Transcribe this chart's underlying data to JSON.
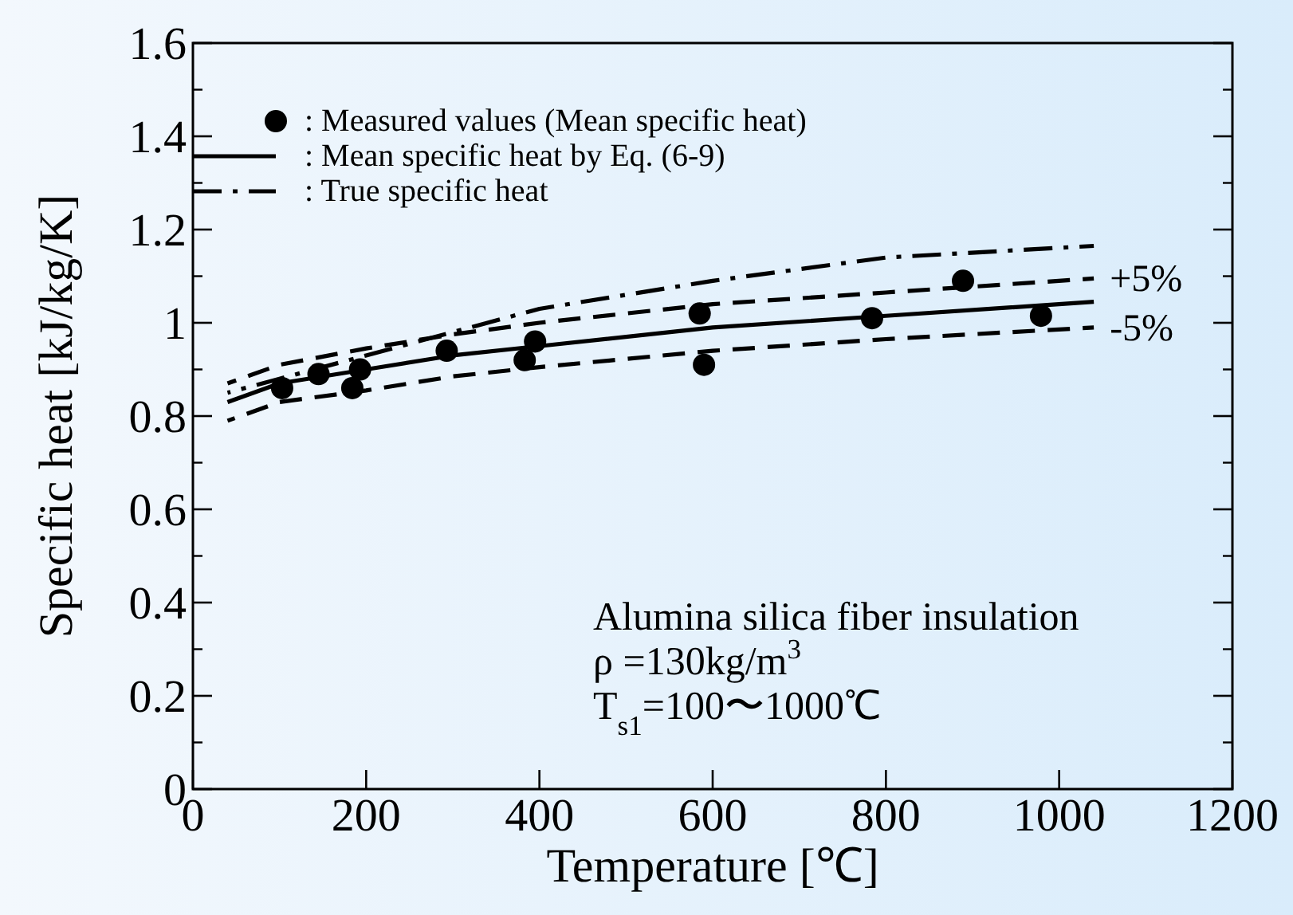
{
  "chart_data": {
    "type": "line",
    "xlabel": "Temperature [℃]",
    "ylabel": "Specific heat [kJ/kg/K]",
    "xlim": [
      0,
      1200
    ],
    "ylim": [
      0,
      1.6
    ],
    "xticks": [
      0,
      200,
      400,
      600,
      800,
      1000,
      1200
    ],
    "yticks": [
      0,
      0.2,
      0.4,
      0.6,
      0.8,
      1,
      1.2,
      1.4,
      1.6
    ],
    "legend": "top left",
    "grid": false,
    "series": [
      {
        "name": ": Measured values (Mean specific heat)",
        "type": "scatter",
        "marker": "circle",
        "color": "#000000",
        "x": [
          103,
          145,
          184,
          193,
          293,
          383,
          395,
          585,
          590,
          784,
          889,
          979
        ],
        "values": [
          0.86,
          0.89,
          0.86,
          0.9,
          0.94,
          0.92,
          0.96,
          1.02,
          0.91,
          1.01,
          1.09,
          1.015
        ]
      },
      {
        "name": ": Mean specific heat by Eq. (6-9)",
        "type": "line",
        "line_style": "solid",
        "color": "#000000",
        "x": [
          40,
          100,
          200,
          300,
          400,
          600,
          800,
          1040
        ],
        "values": [
          0.83,
          0.87,
          0.9,
          0.93,
          0.95,
          0.99,
          1.015,
          1.045
        ]
      },
      {
        "name": ": True specific heat",
        "type": "line",
        "line_style": "dashdot",
        "color": "#000000",
        "x": [
          40,
          100,
          200,
          300,
          400,
          600,
          800,
          1040
        ],
        "values": [
          0.85,
          0.88,
          0.93,
          0.98,
          1.03,
          1.09,
          1.14,
          1.165
        ]
      },
      {
        "type": "line",
        "line_style": "dashed",
        "color": "#000000",
        "x": [
          40,
          100,
          200,
          300,
          400,
          600,
          800,
          1040
        ],
        "values": [
          0.87,
          0.91,
          0.945,
          0.975,
          1.0,
          1.04,
          1.065,
          1.095
        ]
      },
      {
        "type": "line",
        "line_style": "dashed",
        "color": "#000000",
        "x": [
          40,
          100,
          200,
          300,
          400,
          600,
          800,
          1040
        ],
        "values": [
          0.79,
          0.83,
          0.855,
          0.885,
          0.905,
          0.94,
          0.965,
          0.99
        ]
      }
    ],
    "annotations": [
      {
        "text": "+5%",
        "x": 1040,
        "y": 1.095
      },
      {
        "text": "-5%",
        "x": 1040,
        "y": 0.99
      },
      "Alumina silica fiber insulation",
      "ρ =130kg/m$^{3}$",
      "T$_{s1}$=100〜1000℃"
    ]
  }
}
